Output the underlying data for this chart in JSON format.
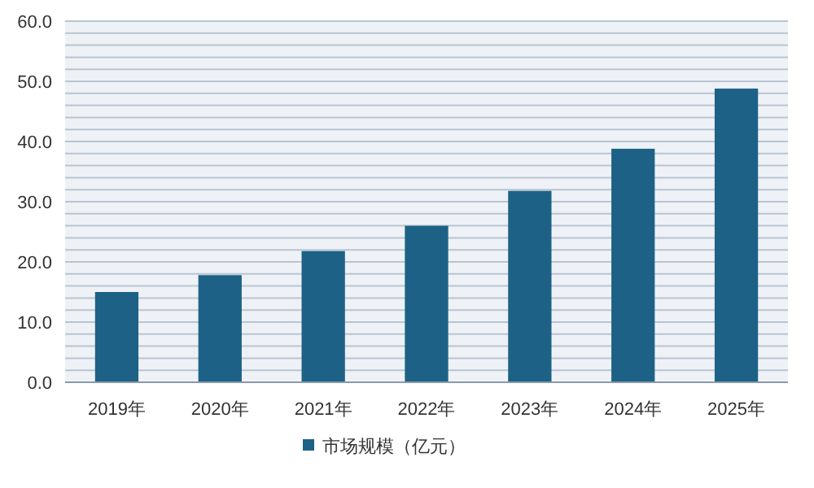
{
  "chart_data": {
    "type": "bar",
    "categories": [
      "2019年",
      "2020年",
      "2021年",
      "2022年",
      "2023年",
      "2024年",
      "2025年"
    ],
    "series": [
      {
        "name": "市场规模（亿元）",
        "color": "#1d6286",
        "values": [
          15,
          17.8,
          21.8,
          26,
          31.8,
          38.8,
          48.8
        ]
      }
    ],
    "ylim": [
      0,
      60
    ],
    "yticks": [
      {
        "value": 0,
        "label": "0.0"
      },
      {
        "value": 2,
        "label": null
      },
      {
        "value": 4,
        "label": null
      },
      {
        "value": 6,
        "label": null
      },
      {
        "value": 8,
        "label": null
      },
      {
        "value": 10,
        "label": "10.0"
      },
      {
        "value": 12,
        "label": null
      },
      {
        "value": 14,
        "label": null
      },
      {
        "value": 16,
        "label": null
      },
      {
        "value": 18,
        "label": null
      },
      {
        "value": 20,
        "label": "20.0"
      },
      {
        "value": 22,
        "label": null
      },
      {
        "value": 24,
        "label": null
      },
      {
        "value": 26,
        "label": null
      },
      {
        "value": 28,
        "label": null
      },
      {
        "value": 30,
        "label": "30.0"
      },
      {
        "value": 32,
        "label": null
      },
      {
        "value": 34,
        "label": null
      },
      {
        "value": 36,
        "label": null
      },
      {
        "value": 38,
        "label": null
      },
      {
        "value": 40,
        "label": "40.0"
      },
      {
        "value": 42,
        "label": null
      },
      {
        "value": 44,
        "label": null
      },
      {
        "value": 46,
        "label": null
      },
      {
        "value": 48,
        "label": null
      },
      {
        "value": 50,
        "label": "50.0"
      },
      {
        "value": 52,
        "label": null
      },
      {
        "value": 54,
        "label": null
      },
      {
        "value": 56,
        "label": null
      },
      {
        "value": 58,
        "label": null
      },
      {
        "value": 60,
        "label": "60.0"
      }
    ],
    "grid": "y",
    "legend": "bottom"
  }
}
